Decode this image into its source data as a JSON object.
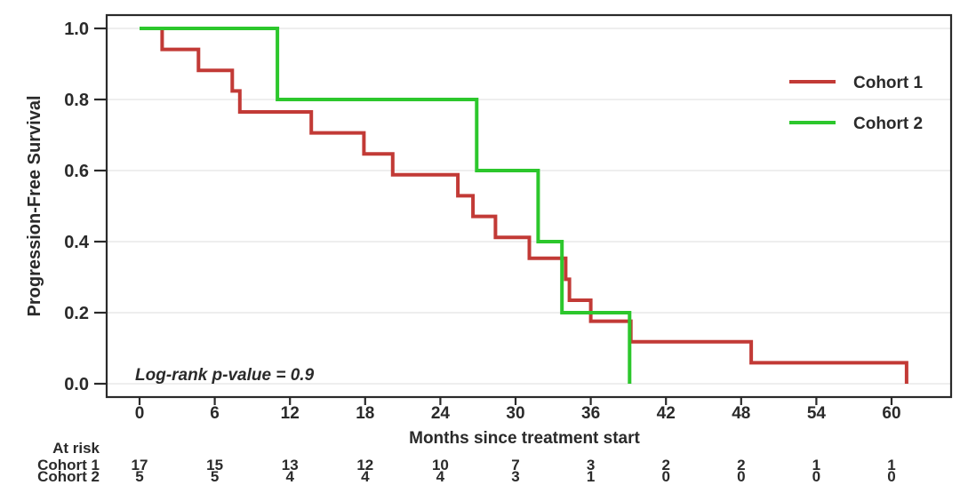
{
  "figure": {
    "background": "#ffffff",
    "text_color": "#2a2a2a",
    "grid_color": "#e8e8e8",
    "border_color": "#2a2a2a"
  },
  "chart_data": {
    "type": "line",
    "variant": "kaplan-meier-step",
    "title": "",
    "xlabel": "Months since treatment start",
    "ylabel": "Progression-Free Survival",
    "annotation": "Log-rank p-value = 0.9",
    "grid": "horizontal",
    "legend_position": "top-right",
    "xticks": [
      0,
      6,
      12,
      18,
      24,
      30,
      36,
      42,
      48,
      54,
      60
    ],
    "yticks": [
      1.0,
      0.8,
      0.6,
      0.4,
      0.2,
      0.0
    ],
    "ytick_labels": [
      "1.0",
      "0.8",
      "0.6",
      "0.4",
      "0.2",
      "0.0"
    ],
    "xlim": [
      -2.6,
      64.8
    ],
    "ylim": [
      -0.04,
      1.04
    ],
    "series": [
      {
        "name": "Cohort 1",
        "color": "#c23a36",
        "steps": [
          [
            0,
            1.0
          ],
          [
            1.8,
            0.941
          ],
          [
            4.7,
            0.882
          ],
          [
            7.4,
            0.824
          ],
          [
            8.0,
            0.765
          ],
          [
            13.7,
            0.706
          ],
          [
            17.9,
            0.647
          ],
          [
            20.2,
            0.588
          ],
          [
            25.4,
            0.529
          ],
          [
            26.6,
            0.471
          ],
          [
            28.4,
            0.412
          ],
          [
            31.1,
            0.353
          ],
          [
            34.0,
            0.294
          ],
          [
            34.3,
            0.235
          ],
          [
            36.0,
            0.176
          ],
          [
            39.2,
            0.118
          ],
          [
            48.8,
            0.059
          ],
          [
            61.2,
            0.0
          ]
        ]
      },
      {
        "name": "Cohort 2",
        "color": "#2cc72c",
        "steps": [
          [
            0,
            1.0
          ],
          [
            11.0,
            0.8
          ],
          [
            26.9,
            0.6
          ],
          [
            31.8,
            0.4
          ],
          [
            33.7,
            0.2
          ],
          [
            39.1,
            0.0
          ]
        ]
      }
    ],
    "at_risk": {
      "header": "At risk",
      "rows": [
        {
          "label": "Cohort 1",
          "values": [
            17,
            15,
            13,
            12,
            10,
            7,
            3,
            2,
            2,
            1,
            1
          ]
        },
        {
          "label": "Cohort 2",
          "values": [
            5,
            5,
            4,
            4,
            4,
            3,
            1,
            0,
            0,
            0,
            0
          ]
        }
      ]
    }
  }
}
